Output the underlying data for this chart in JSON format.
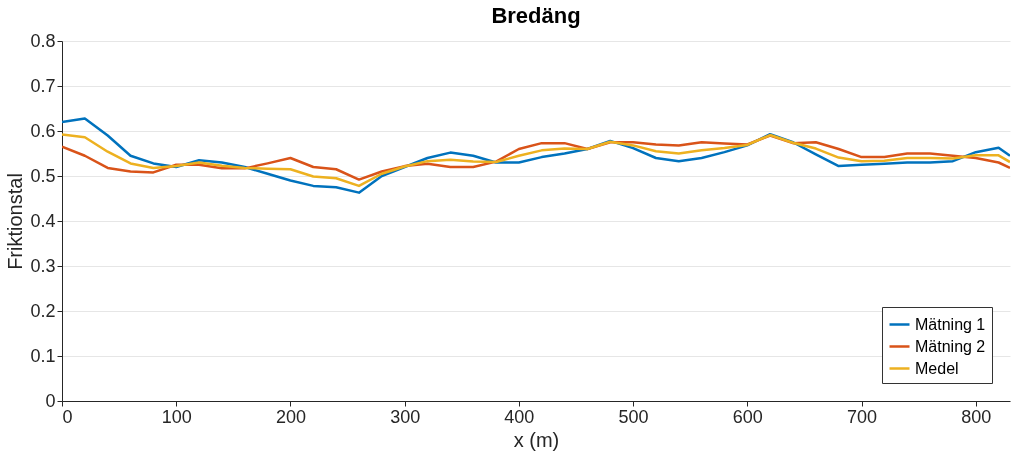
{
  "chart_data": {
    "type": "line",
    "title": "Bredäng",
    "xlabel": "x (m)",
    "ylabel": "Friktionstal",
    "x": [
      0,
      20,
      40,
      60,
      80,
      100,
      120,
      140,
      160,
      180,
      200,
      220,
      240,
      260,
      280,
      300,
      320,
      340,
      360,
      380,
      400,
      420,
      440,
      460,
      480,
      500,
      520,
      540,
      560,
      580,
      600,
      620,
      640,
      660,
      680,
      700,
      720,
      740,
      760,
      780,
      800,
      820,
      830
    ],
    "series": [
      {
        "name": "Mätning 1",
        "color": "#0072bd",
        "values": [
          0.62,
          0.628,
          0.59,
          0.545,
          0.528,
          0.52,
          0.535,
          0.53,
          0.52,
          0.505,
          0.49,
          0.478,
          0.475,
          0.463,
          0.5,
          0.52,
          0.54,
          0.552,
          0.545,
          0.53,
          0.53,
          0.542,
          0.55,
          0.56,
          0.578,
          0.562,
          0.54,
          0.533,
          0.54,
          0.553,
          0.568,
          0.593,
          0.575,
          0.548,
          0.522,
          0.525,
          0.527,
          0.53,
          0.53,
          0.533,
          0.553,
          0.563,
          0.545
        ]
      },
      {
        "name": "Mätning 2",
        "color": "#d95319",
        "values": [
          0.565,
          0.545,
          0.518,
          0.51,
          0.508,
          0.525,
          0.525,
          0.517,
          0.517,
          0.528,
          0.54,
          0.52,
          0.515,
          0.492,
          0.51,
          0.522,
          0.527,
          0.52,
          0.52,
          0.532,
          0.56,
          0.573,
          0.573,
          0.56,
          0.575,
          0.575,
          0.57,
          0.568,
          0.575,
          0.572,
          0.57,
          0.59,
          0.573,
          0.575,
          0.56,
          0.542,
          0.542,
          0.55,
          0.55,
          0.545,
          0.54,
          0.53,
          0.518
        ]
      },
      {
        "name": "Medel",
        "color": "#edb120",
        "values": [
          0.592,
          0.586,
          0.554,
          0.528,
          0.518,
          0.522,
          0.53,
          0.523,
          0.518,
          0.516,
          0.515,
          0.499,
          0.495,
          0.478,
          0.505,
          0.521,
          0.533,
          0.536,
          0.532,
          0.531,
          0.545,
          0.557,
          0.561,
          0.56,
          0.576,
          0.568,
          0.555,
          0.55,
          0.557,
          0.562,
          0.569,
          0.591,
          0.574,
          0.561,
          0.541,
          0.533,
          0.534,
          0.54,
          0.54,
          0.539,
          0.546,
          0.546,
          0.531
        ]
      }
    ],
    "xlim": [
      0,
      830
    ],
    "xticks": [
      0,
      100,
      200,
      300,
      400,
      500,
      600,
      700,
      800
    ],
    "ylim": [
      0,
      0.8
    ],
    "yticks": [
      0,
      0.1,
      0.2,
      0.3,
      0.4,
      0.5,
      0.6,
      0.7,
      0.8
    ],
    "grid": "y",
    "legend": "bottom right",
    "marker": "none",
    "line_style": "solid"
  }
}
